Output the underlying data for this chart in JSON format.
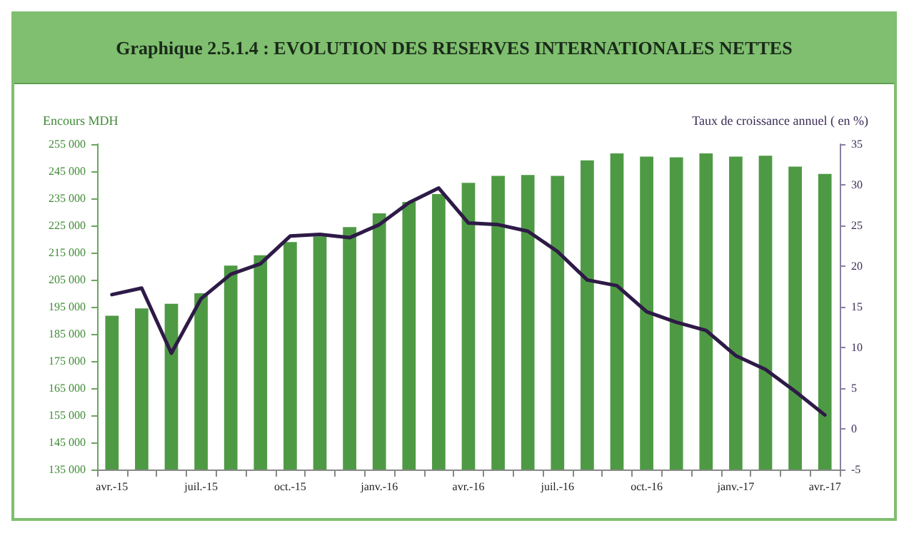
{
  "chart_data": {
    "type": "bar",
    "title": "Graphique 2.5.1.4 : EVOLUTION DES RESERVES INTERNATIONALES NETTES",
    "ylabel": "Encours MDH",
    "y2label": "Taux de croissance annuel ( en %)",
    "categories": [
      "avr.-15",
      null,
      null,
      "juil.-15",
      null,
      null,
      "oct.-15",
      null,
      null,
      "janv.-16",
      null,
      null,
      "avr.-16",
      null,
      null,
      "juil.-16",
      null,
      null,
      "oct.-16",
      null,
      null,
      "janv.-17",
      null,
      null,
      "avr.-17"
    ],
    "series": [
      {
        "color": "#4e9a44",
        "values": [
          191700,
          194400,
          196100,
          200000,
          210200,
          214000,
          218900,
          221000,
          224400,
          229500,
          233700,
          236600,
          240700,
          243300,
          243600,
          243300,
          249000,
          251600,
          250400,
          250100,
          251600,
          250400,
          250700,
          246700,
          244000
        ]
      },
      {
        "type": "line",
        "axis": "y2",
        "color": "#2e1a47",
        "values": [
          16.5,
          17.3,
          9.3,
          16.0,
          19.0,
          20.3,
          23.7,
          23.9,
          23.5,
          25.1,
          27.8,
          29.6,
          25.3,
          25.1,
          24.3,
          21.8,
          18.3,
          17.6,
          14.4,
          13.1,
          12.1,
          9.0,
          7.3,
          4.6,
          1.7
        ]
      }
    ],
    "ylim": [
      135000,
      255000
    ],
    "yticks": [
      {
        "value": 135000,
        "label": "135 000"
      },
      {
        "value": 145000,
        "label": "145 000"
      },
      {
        "value": 155000,
        "label": "155 000"
      },
      {
        "value": 165000,
        "label": "165 000"
      },
      {
        "value": 175000,
        "label": "175 000"
      },
      {
        "value": 185000,
        "label": "185 000"
      },
      {
        "value": 195000,
        "label": "195 000"
      },
      {
        "value": 205000,
        "label": "205 000"
      },
      {
        "value": 215000,
        "label": "215 000"
      },
      {
        "value": 225000,
        "label": "225 000"
      },
      {
        "value": 235000,
        "label": "235 000"
      },
      {
        "value": 245000,
        "label": "245 000"
      },
      {
        "value": 255000,
        "label": "255 000"
      }
    ],
    "y2lim": [
      -5,
      35
    ],
    "y2ticks": [
      -5,
      0,
      5,
      10,
      15,
      20,
      25,
      30,
      35
    ],
    "grid": false,
    "marker": "none",
    "line_style": "solid"
  }
}
